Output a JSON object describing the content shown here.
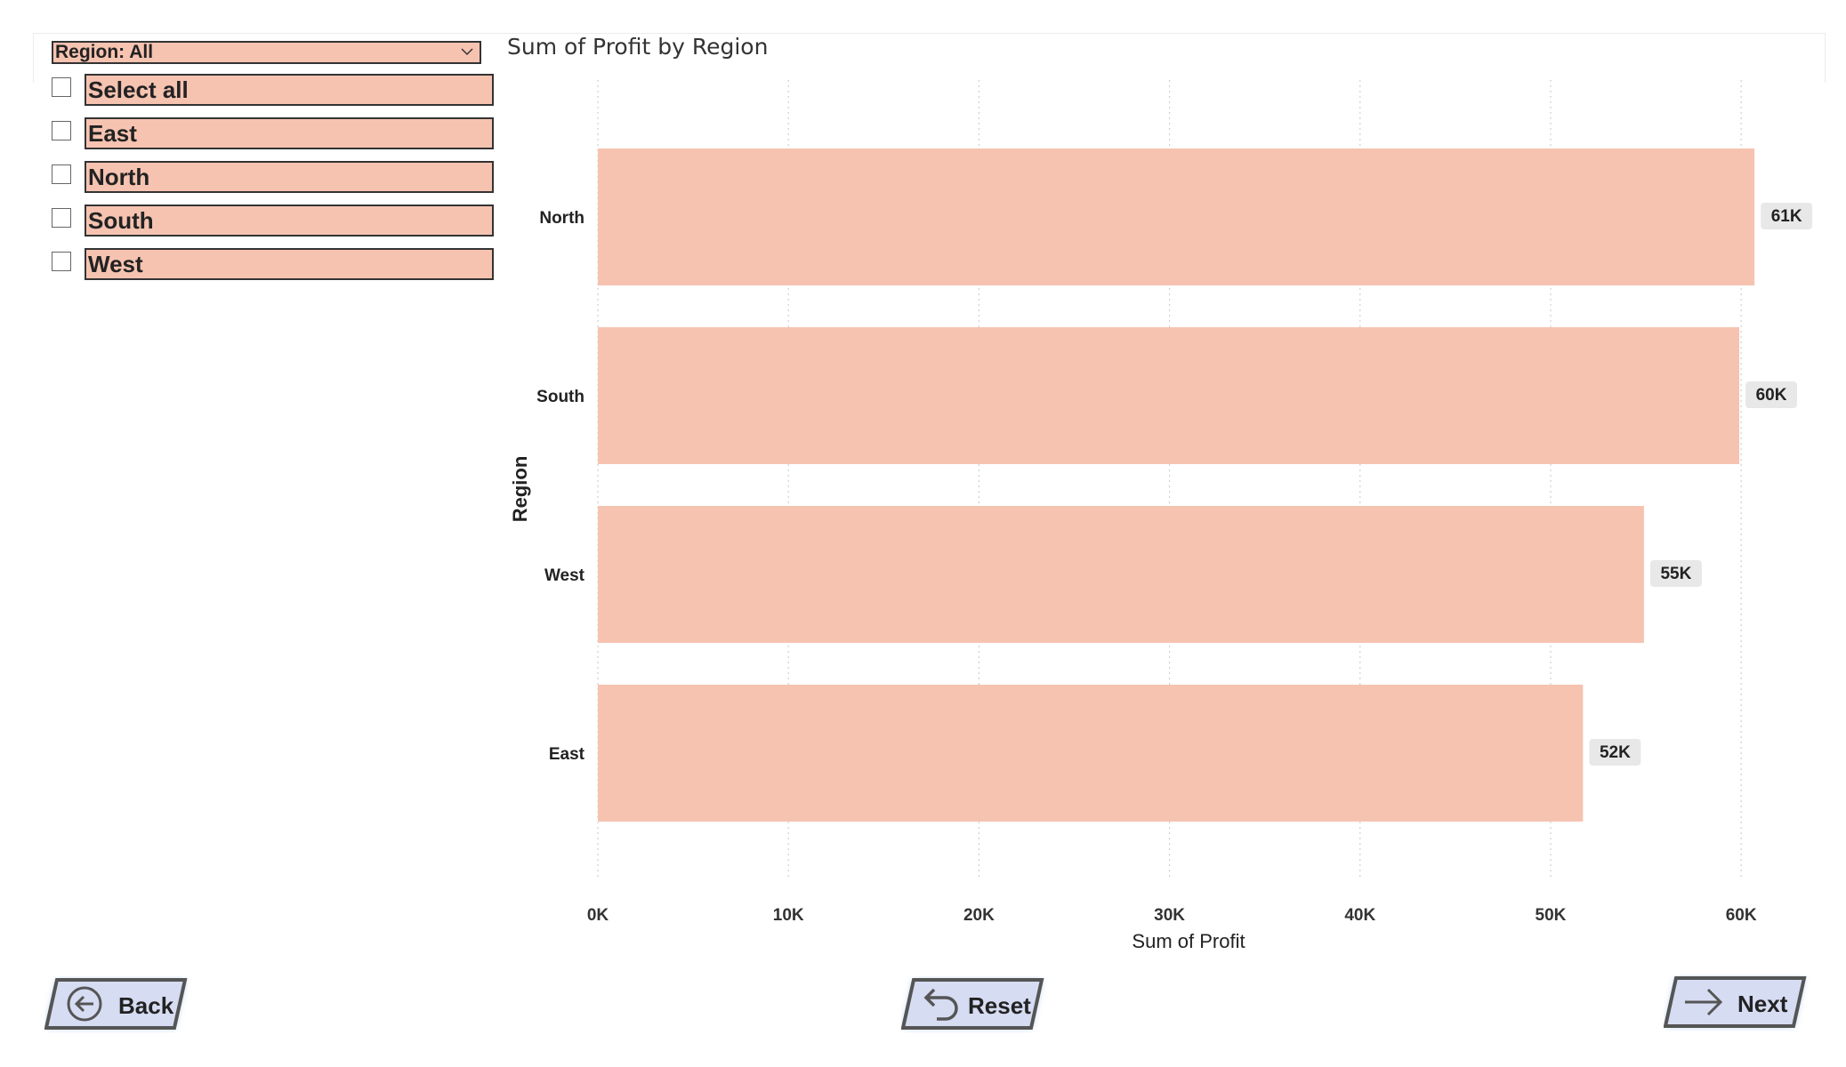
{
  "slicer": {
    "header": "Region: All",
    "items": [
      {
        "label": "Select all",
        "checked": false
      },
      {
        "label": "East",
        "checked": false
      },
      {
        "label": "North",
        "checked": false
      },
      {
        "label": "South",
        "checked": false
      },
      {
        "label": "West",
        "checked": false
      }
    ]
  },
  "chart_data": {
    "type": "bar",
    "orientation": "horizontal",
    "title": "Sum of Profit by Region",
    "xlabel": "Sum of Profit",
    "ylabel": "Region",
    "categories": [
      "North",
      "South",
      "West",
      "East"
    ],
    "values": [
      60700,
      59900,
      54900,
      51700
    ],
    "data_labels": [
      "61K",
      "60K",
      "55K",
      "52K"
    ],
    "xlim": [
      0,
      62000
    ],
    "xticks": [
      0,
      10000,
      20000,
      30000,
      40000,
      50000,
      60000
    ],
    "xtick_labels": [
      "0K",
      "10K",
      "20K",
      "30K",
      "40K",
      "50K",
      "60K"
    ],
    "grid": "vertical-dotted",
    "bar_color": "#f6c3b1"
  },
  "buttons": {
    "back": "Back",
    "reset": "Reset",
    "next": "Next"
  },
  "colors": {
    "slicer_fill": "#f6c3b1",
    "button_fill": "#d6dcf2",
    "button_glow": "#9fc3ef"
  }
}
